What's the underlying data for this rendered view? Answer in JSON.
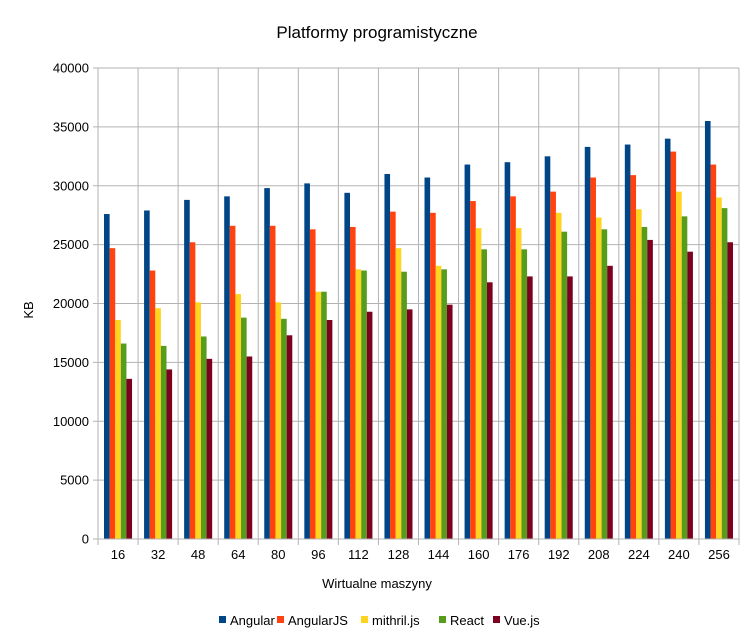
{
  "chart_data": {
    "type": "bar",
    "title": "Platformy programistyczne",
    "xlabel": "Wirtualne maszyny",
    "ylabel": "KB",
    "ylim": [
      0,
      40000
    ],
    "yticks": [
      0,
      5000,
      10000,
      15000,
      20000,
      25000,
      30000,
      35000,
      40000
    ],
    "grid": true,
    "legend_position": "bottom",
    "categories": [
      "16",
      "32",
      "48",
      "64",
      "80",
      "96",
      "112",
      "128",
      "144",
      "160",
      "176",
      "192",
      "208",
      "224",
      "240",
      "256"
    ],
    "series": [
      {
        "name": "Angular",
        "color": "#004586",
        "values": [
          27600,
          27900,
          28800,
          29100,
          29800,
          30200,
          29400,
          31000,
          30700,
          31800,
          32000,
          32500,
          33300,
          33500,
          34000,
          35500
        ]
      },
      {
        "name": "AngularJS",
        "color": "#ff420e",
        "values": [
          24700,
          22800,
          25200,
          26600,
          26600,
          26300,
          26500,
          27800,
          27700,
          28700,
          29100,
          29500,
          30700,
          30900,
          32900,
          31800
        ]
      },
      {
        "name": "mithril.js",
        "color": "#ffd320",
        "values": [
          18600,
          19600,
          20100,
          20800,
          20100,
          21000,
          22900,
          24700,
          23200,
          26400,
          26400,
          27700,
          27300,
          28000,
          29500,
          29000
        ]
      },
      {
        "name": "React",
        "color": "#579d1c",
        "values": [
          16600,
          16400,
          17200,
          18800,
          18700,
          21000,
          22800,
          22700,
          22900,
          24600,
          24600,
          26100,
          26300,
          26500,
          27400,
          28100
        ]
      },
      {
        "name": "Vue.js",
        "color": "#7e0021",
        "values": [
          13600,
          14400,
          15300,
          15500,
          17300,
          18600,
          19300,
          19500,
          19900,
          21800,
          22300,
          22300,
          23200,
          25400,
          24400,
          25200
        ]
      }
    ]
  }
}
